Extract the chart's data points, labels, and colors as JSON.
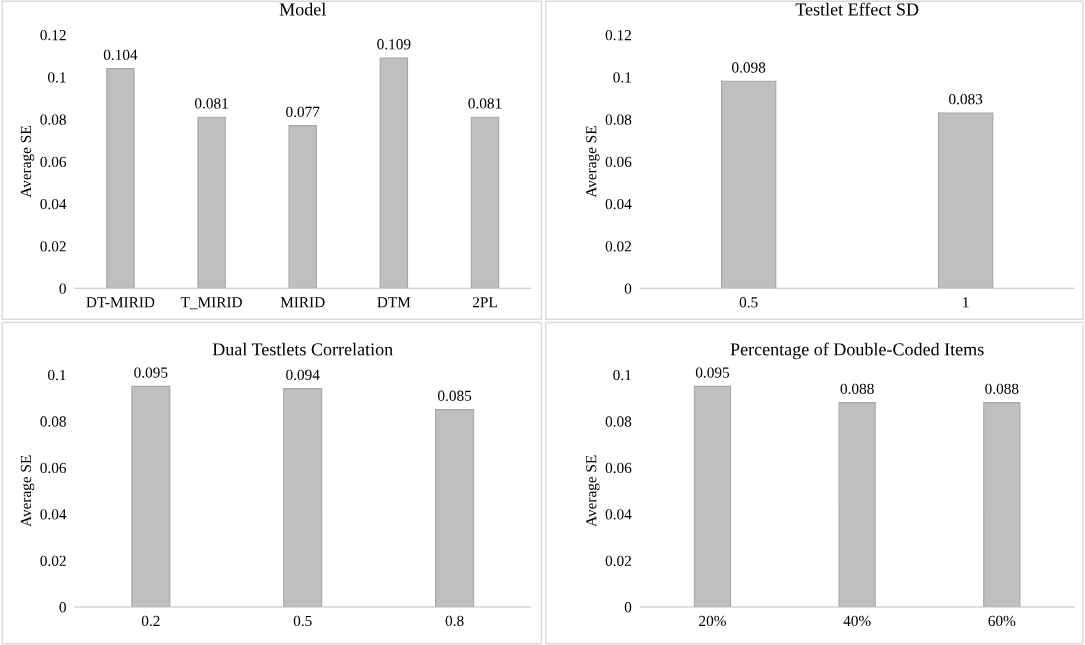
{
  "chart_data": [
    {
      "type": "bar",
      "title": "Model",
      "ylabel": "Average SE",
      "categories": [
        "DT-MIRID",
        "T_MIRID",
        "MIRID",
        "DTM",
        "2PL"
      ],
      "values": [
        0.104,
        0.081,
        0.077,
        0.109,
        0.081
      ],
      "color": "#bfbfbf",
      "ylim": [
        0,
        0.12
      ],
      "yticks": [
        0,
        0.02,
        0.04,
        0.06,
        0.08,
        0.1,
        0.12
      ],
      "data_labels": true,
      "grid": false
    },
    {
      "type": "bar",
      "title": "Testlet Effect SD",
      "ylabel": "Average SE",
      "categories": [
        "0.5",
        "1"
      ],
      "values": [
        0.098,
        0.083
      ],
      "color": "#bfbfbf",
      "ylim": [
        0,
        0.12
      ],
      "yticks": [
        0,
        0.02,
        0.04,
        0.06,
        0.08,
        0.1,
        0.12
      ],
      "data_labels": true,
      "grid": false
    },
    {
      "type": "bar",
      "title": "Dual Testlets Correlation",
      "ylabel": "Average SE",
      "categories": [
        "0.2",
        "0.5",
        "0.8"
      ],
      "values": [
        0.095,
        0.094,
        0.085
      ],
      "color": "#bfbfbf",
      "ylim": [
        0,
        0.1
      ],
      "yticks": [
        0,
        0.02,
        0.04,
        0.06,
        0.08,
        0.1
      ],
      "data_labels": true,
      "grid": false
    },
    {
      "type": "bar",
      "title": "Percentage of Double-Coded Items",
      "ylabel": "Average SE",
      "categories": [
        "20%",
        "40%",
        "60%"
      ],
      "values": [
        0.095,
        0.088,
        0.088
      ],
      "color": "#bfbfbf",
      "ylim": [
        0,
        0.1
      ],
      "yticks": [
        0,
        0.02,
        0.04,
        0.06,
        0.08,
        0.1
      ],
      "data_labels": true,
      "grid": false
    }
  ]
}
